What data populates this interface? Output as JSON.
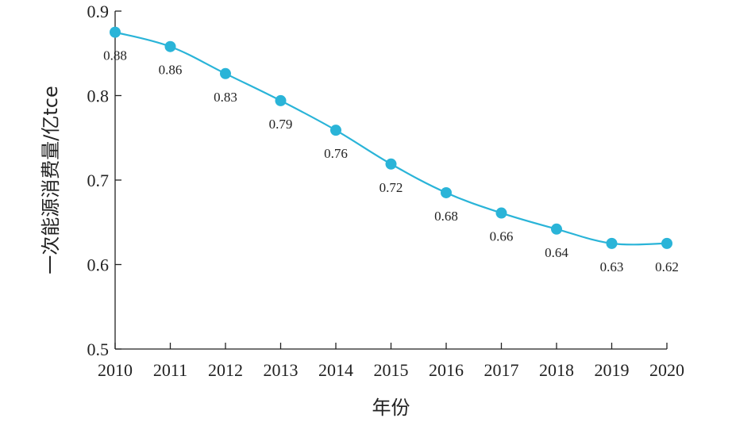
{
  "chart_data": {
    "type": "line",
    "title": "",
    "xlabel": "年份",
    "ylabel": "一次能源消费量/亿tce",
    "x": [
      "2010",
      "2011",
      "2012",
      "2013",
      "2014",
      "2015",
      "2016",
      "2017",
      "2018",
      "2019",
      "2020"
    ],
    "series": [
      {
        "values": [
          0.875,
          0.858,
          0.826,
          0.794,
          0.759,
          0.719,
          0.685,
          0.661,
          0.642,
          0.625,
          0.625
        ],
        "data_labels": [
          "0.88",
          "0.86",
          "0.83",
          "0.79",
          "0.76",
          "0.72",
          "0.68",
          "0.66",
          "0.64",
          "0.63",
          "0.62"
        ],
        "color": "#2ab4d8"
      }
    ],
    "ylim": [
      0.5,
      0.9
    ],
    "yticks": [
      "0.5",
      "0.6",
      "0.7",
      "0.8",
      "0.9"
    ],
    "grid": false,
    "legend": "none"
  }
}
